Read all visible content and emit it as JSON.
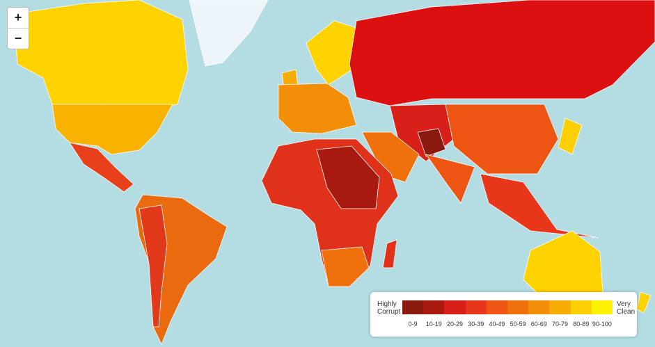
{
  "controls": {
    "zoom_in": "+",
    "zoom_out": "−"
  },
  "legend": {
    "low_label": "Highly Corrupt",
    "high_label": "Very Clean",
    "bins": [
      {
        "label": "0-9",
        "color": "#8b1a0e"
      },
      {
        "label": "10-19",
        "color": "#a8190f"
      },
      {
        "label": "20-29",
        "color": "#d91f1a"
      },
      {
        "label": "30-39",
        "color": "#e8361a"
      },
      {
        "label": "40-49",
        "color": "#ee5512"
      },
      {
        "label": "50-59",
        "color": "#f0700c"
      },
      {
        "label": "60-69",
        "color": "#f38e09"
      },
      {
        "label": "70-79",
        "color": "#f7ac06"
      },
      {
        "label": "80-89",
        "color": "#fbcf03"
      },
      {
        "label": "90-100",
        "color": "#fff200"
      }
    ]
  }
}
